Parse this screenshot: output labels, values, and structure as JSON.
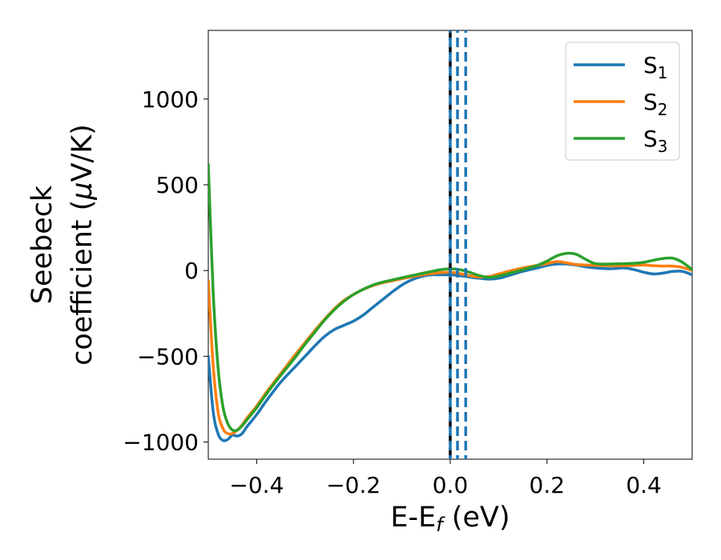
{
  "chart_data": {
    "type": "line",
    "xlabel": "E-E",
    "xlabel_sub": "f",
    "xlabel_unit": " (eV)",
    "ylabel_line1": "Seebeck",
    "ylabel_line2_prefix": "coefficient  (",
    "ylabel_mu": "μ",
    "ylabel_line2_suffix": "V/K)",
    "xlim": [
      -0.5,
      0.5
    ],
    "ylim": [
      -1100,
      1400
    ],
    "xticks": [
      -0.4,
      -0.2,
      0.0,
      0.2,
      0.4
    ],
    "xtick_labels": [
      "−0.4",
      "−0.2",
      "0.0",
      "0.2",
      "0.4"
    ],
    "yticks": [
      -1000,
      -500,
      0,
      500,
      1000
    ],
    "ytick_labels": [
      "−1000",
      "−500",
      "0",
      "500",
      "1000"
    ],
    "legend_position": "top-right",
    "grid": false,
    "colors": {
      "s1": "#1f77b4",
      "s2": "#ff7f0e",
      "s3": "#2ca02c",
      "fermi": "#000000"
    },
    "vertical_lines": [
      {
        "x": 0.0,
        "color": "#000000",
        "style": "dashed"
      },
      {
        "x": 0.0,
        "color": "#1f77b4",
        "style": "dashed"
      },
      {
        "x": 0.015,
        "color": "#1f77b4",
        "style": "dashed"
      },
      {
        "x": 0.032,
        "color": "#1f77b4",
        "style": "dashed"
      }
    ],
    "series": [
      {
        "name": "S",
        "sub": "1",
        "color": "#1f77b4",
        "x": [
          -0.5,
          -0.49,
          -0.48,
          -0.47,
          -0.46,
          -0.45,
          -0.44,
          -0.43,
          -0.42,
          -0.4,
          -0.38,
          -0.35,
          -0.32,
          -0.3,
          -0.28,
          -0.26,
          -0.24,
          -0.22,
          -0.2,
          -0.18,
          -0.16,
          -0.14,
          -0.12,
          -0.1,
          -0.08,
          -0.06,
          -0.04,
          -0.02,
          0.0,
          0.02,
          0.04,
          0.06,
          0.08,
          0.1,
          0.12,
          0.15,
          0.18,
          0.2,
          0.22,
          0.24,
          0.26,
          0.28,
          0.3,
          0.33,
          0.36,
          0.38,
          0.4,
          0.42,
          0.44,
          0.46,
          0.48,
          0.5
        ],
        "y": [
          -500,
          -820,
          -950,
          -990,
          -985,
          -960,
          -965,
          -950,
          -910,
          -840,
          -760,
          -650,
          -560,
          -500,
          -440,
          -385,
          -345,
          -320,
          -295,
          -260,
          -215,
          -170,
          -125,
          -85,
          -55,
          -35,
          -25,
          -25,
          -25,
          -30,
          -38,
          -45,
          -50,
          -45,
          -30,
          -5,
          15,
          30,
          38,
          38,
          32,
          22,
          15,
          10,
          15,
          5,
          -10,
          -20,
          -15,
          -5,
          -5,
          -25
        ]
      },
      {
        "name": "S",
        "sub": "2",
        "color": "#ff7f0e",
        "x": [
          -0.5,
          -0.49,
          -0.48,
          -0.47,
          -0.46,
          -0.45,
          -0.44,
          -0.43,
          -0.42,
          -0.4,
          -0.38,
          -0.35,
          -0.32,
          -0.3,
          -0.28,
          -0.26,
          -0.24,
          -0.22,
          -0.2,
          -0.18,
          -0.16,
          -0.14,
          -0.12,
          -0.1,
          -0.08,
          -0.06,
          -0.04,
          -0.02,
          0.0,
          0.02,
          0.04,
          0.06,
          0.08,
          0.1,
          0.12,
          0.15,
          0.18,
          0.2,
          0.22,
          0.24,
          0.26,
          0.28,
          0.3,
          0.33,
          0.36,
          0.38,
          0.4,
          0.42,
          0.44,
          0.46,
          0.48,
          0.5
        ],
        "y": [
          -60,
          -550,
          -820,
          -920,
          -950,
          -950,
          -930,
          -900,
          -860,
          -790,
          -710,
          -600,
          -490,
          -420,
          -350,
          -285,
          -225,
          -175,
          -140,
          -110,
          -88,
          -72,
          -60,
          -48,
          -36,
          -26,
          -18,
          -12,
          -10,
          -18,
          -30,
          -38,
          -35,
          -20,
          -5,
          15,
          30,
          40,
          52,
          45,
          35,
          32,
          30,
          28,
          28,
          30,
          32,
          28,
          26,
          26,
          18,
          0
        ]
      },
      {
        "name": "S",
        "sub": "3",
        "color": "#2ca02c",
        "x": [
          -0.5,
          -0.49,
          -0.48,
          -0.47,
          -0.46,
          -0.45,
          -0.44,
          -0.43,
          -0.42,
          -0.4,
          -0.38,
          -0.35,
          -0.32,
          -0.3,
          -0.28,
          -0.26,
          -0.24,
          -0.22,
          -0.2,
          -0.18,
          -0.16,
          -0.14,
          -0.12,
          -0.1,
          -0.08,
          -0.06,
          -0.04,
          -0.02,
          0.0,
          0.02,
          0.04,
          0.06,
          0.08,
          0.1,
          0.12,
          0.15,
          0.18,
          0.2,
          0.22,
          0.24,
          0.26,
          0.28,
          0.3,
          0.33,
          0.36,
          0.38,
          0.4,
          0.42,
          0.44,
          0.46,
          0.48,
          0.5
        ],
        "y": [
          620,
          -120,
          -560,
          -790,
          -890,
          -930,
          -930,
          -905,
          -870,
          -800,
          -720,
          -610,
          -505,
          -430,
          -360,
          -290,
          -230,
          -180,
          -140,
          -110,
          -85,
          -68,
          -55,
          -42,
          -30,
          -18,
          -6,
          5,
          10,
          5,
          -10,
          -30,
          -40,
          -32,
          -18,
          5,
          30,
          55,
          85,
          100,
          95,
          65,
          40,
          38,
          40,
          42,
          48,
          60,
          70,
          72,
          48,
          5
        ]
      }
    ]
  }
}
